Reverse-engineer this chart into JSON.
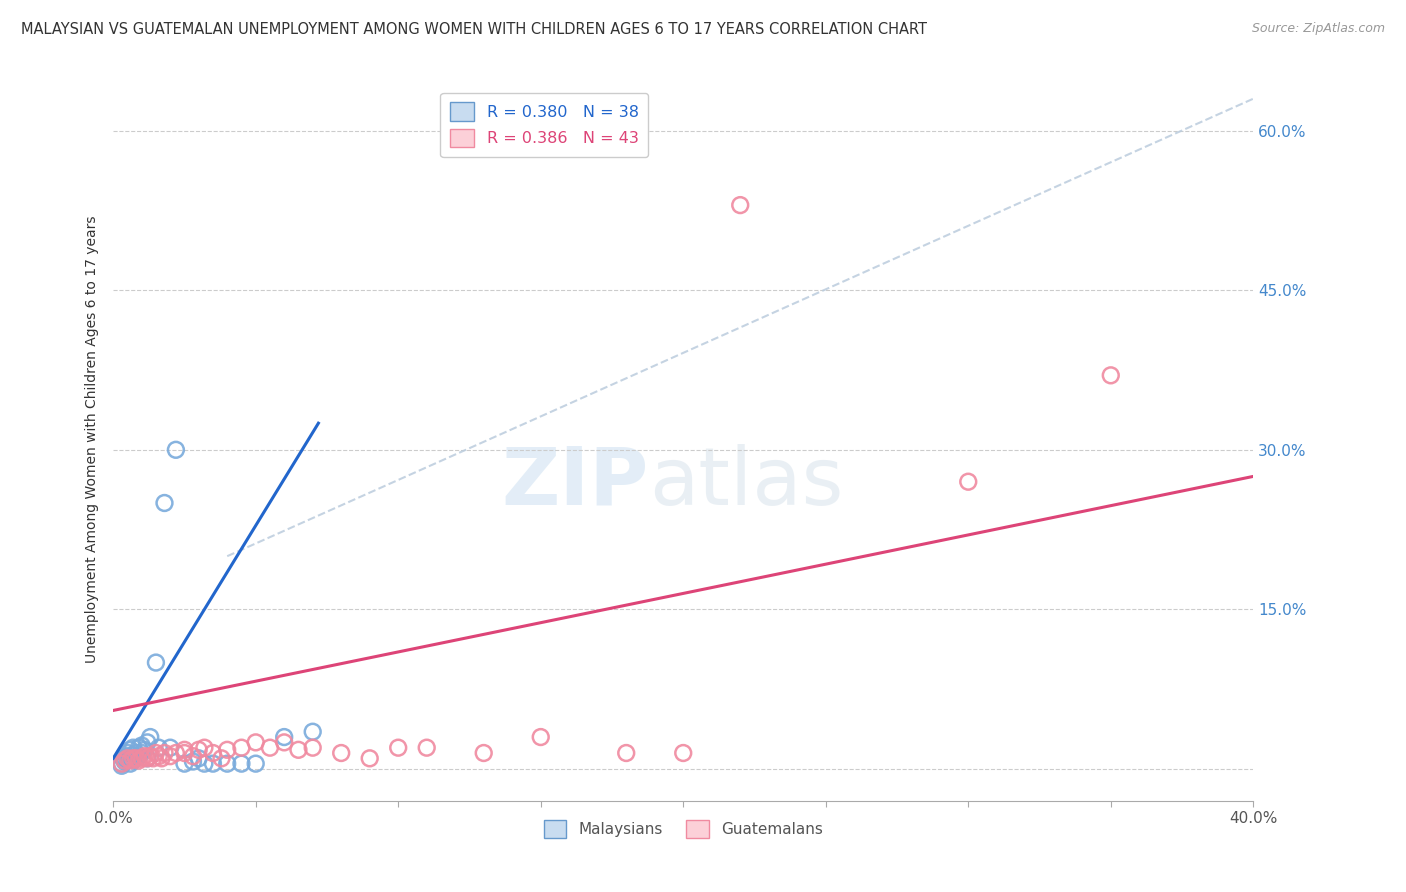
{
  "title": "MALAYSIAN VS GUATEMALAN UNEMPLOYMENT AMONG WOMEN WITH CHILDREN AGES 6 TO 17 YEARS CORRELATION CHART",
  "source": "Source: ZipAtlas.com",
  "ylabel": "Unemployment Among Women with Children Ages 6 to 17 years",
  "xlim": [
    0.0,
    0.4
  ],
  "ylim": [
    -0.03,
    0.65
  ],
  "r_malaysian": 0.38,
  "n_malaysian": 38,
  "r_guatemalan": 0.386,
  "n_guatemalan": 43,
  "malaysian_color": "#7aabdc",
  "guatemalan_color": "#f08aa0",
  "malaysian_line_color": "#2266cc",
  "guatemalan_line_color": "#dd4477",
  "diag_line_color": "#bbccdd",
  "background_color": "#ffffff",
  "watermark_text": "ZIPatlas",
  "malaysian_x": [
    0.003,
    0.003,
    0.004,
    0.004,
    0.005,
    0.005,
    0.005,
    0.006,
    0.006,
    0.006,
    0.007,
    0.007,
    0.007,
    0.008,
    0.008,
    0.009,
    0.009,
    0.01,
    0.01,
    0.011,
    0.012,
    0.012,
    0.013,
    0.015,
    0.016,
    0.018,
    0.02,
    0.022,
    0.025,
    0.028,
    0.03,
    0.032,
    0.035,
    0.04,
    0.045,
    0.05,
    0.06,
    0.07
  ],
  "malaysian_y": [
    0.005,
    0.003,
    0.007,
    0.01,
    0.008,
    0.012,
    0.015,
    0.005,
    0.01,
    0.018,
    0.008,
    0.013,
    0.02,
    0.01,
    0.015,
    0.012,
    0.02,
    0.015,
    0.022,
    0.018,
    0.025,
    0.01,
    0.03,
    0.1,
    0.02,
    0.25,
    0.02,
    0.3,
    0.005,
    0.007,
    0.01,
    0.005,
    0.005,
    0.005,
    0.005,
    0.005,
    0.03,
    0.035
  ],
  "guatemalan_x": [
    0.003,
    0.004,
    0.005,
    0.006,
    0.007,
    0.008,
    0.009,
    0.01,
    0.011,
    0.012,
    0.013,
    0.014,
    0.015,
    0.016,
    0.017,
    0.018,
    0.02,
    0.022,
    0.025,
    0.025,
    0.028,
    0.03,
    0.032,
    0.035,
    0.038,
    0.04,
    0.045,
    0.05,
    0.055,
    0.06,
    0.065,
    0.07,
    0.08,
    0.09,
    0.1,
    0.11,
    0.13,
    0.15,
    0.18,
    0.2,
    0.22,
    0.3,
    0.35
  ],
  "guatemalan_y": [
    0.005,
    0.008,
    0.01,
    0.008,
    0.01,
    0.01,
    0.008,
    0.01,
    0.012,
    0.01,
    0.012,
    0.01,
    0.015,
    0.012,
    0.01,
    0.015,
    0.012,
    0.015,
    0.015,
    0.018,
    0.012,
    0.018,
    0.02,
    0.015,
    0.01,
    0.018,
    0.02,
    0.025,
    0.02,
    0.025,
    0.018,
    0.02,
    0.015,
    0.01,
    0.02,
    0.02,
    0.015,
    0.03,
    0.015,
    0.015,
    0.53,
    0.27,
    0.37
  ]
}
